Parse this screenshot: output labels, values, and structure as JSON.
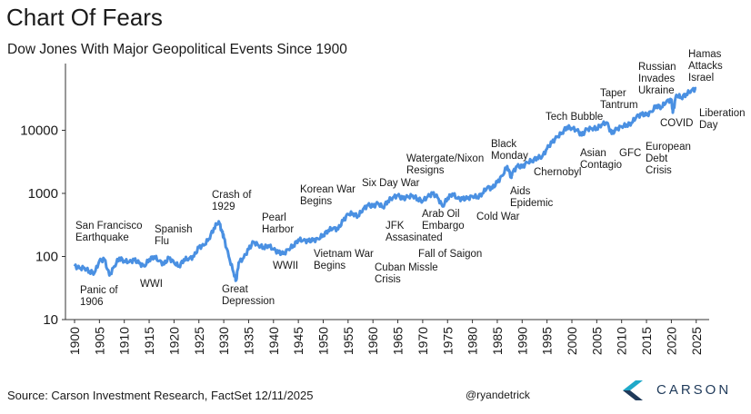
{
  "chart_data": {
    "type": "line",
    "title": "Chart Of Fears",
    "subtitle": "Dow Jones With Major Geopolitical Events Since 1900",
    "y_scale": "log",
    "ylim": [
      10,
      50000
    ],
    "xlim": [
      1900,
      2026
    ],
    "y_ticks": [
      "10",
      "100",
      "1000",
      "10000"
    ],
    "x_ticks": [
      "1900",
      "1905",
      "1910",
      "1915",
      "1920",
      "1925",
      "1930",
      "1935",
      "1940",
      "1945",
      "1950",
      "1955",
      "1960",
      "1965",
      "1970",
      "1975",
      "1980",
      "1985",
      "1990",
      "1995",
      "2000",
      "2005",
      "2010",
      "2015",
      "2020",
      "2025"
    ],
    "line_color": "#4a90e2",
    "series": [
      {
        "x": [
          1900,
          1901,
          1902,
          1903,
          1904,
          1905,
          1906,
          1907,
          1908,
          1909,
          1910,
          1911,
          1912,
          1913,
          1914,
          1915,
          1916,
          1917,
          1918,
          1919,
          1920,
          1921,
          1922,
          1923,
          1924,
          1925,
          1926,
          1927,
          1928,
          1929,
          1929.7,
          1930,
          1931,
          1932,
          1932.5,
          1933,
          1934,
          1935,
          1936,
          1937,
          1938,
          1939,
          1940,
          1941,
          1942,
          1943,
          1944,
          1945,
          1946,
          1947,
          1948,
          1949,
          1950,
          1951,
          1952,
          1953,
          1954,
          1955,
          1956,
          1957,
          1958,
          1959,
          1960,
          1961,
          1962,
          1963,
          1964,
          1965,
          1966,
          1967,
          1968,
          1969,
          1970,
          1971,
          1972,
          1973,
          1974,
          1975,
          1976,
          1977,
          1978,
          1979,
          1980,
          1981,
          1982,
          1983,
          1984,
          1985,
          1986,
          1987,
          1987.8,
          1988,
          1989,
          1990,
          1991,
          1992,
          1993,
          1994,
          1995,
          1996,
          1997,
          1998,
          1999,
          2000,
          2001,
          2002,
          2003,
          2004,
          2005,
          2006,
          2007,
          2008,
          2009,
          2010,
          2011,
          2012,
          2013,
          2014,
          2015,
          2016,
          2017,
          2018,
          2019,
          2020,
          2020.3,
          2021,
          2022,
          2023,
          2024,
          2025
        ],
        "y": [
          70,
          65,
          66,
          58,
          55,
          85,
          90,
          50,
          70,
          95,
          85,
          82,
          88,
          78,
          70,
          90,
          100,
          85,
          75,
          95,
          80,
          70,
          90,
          92,
          100,
          140,
          150,
          190,
          280,
          360,
          240,
          200,
          100,
          55,
          42,
          80,
          95,
          130,
          170,
          150,
          140,
          150,
          130,
          115,
          110,
          130,
          150,
          185,
          180,
          175,
          180,
          190,
          220,
          260,
          280,
          270,
          370,
          470,
          480,
          440,
          560,
          650,
          620,
          700,
          600,
          760,
          860,
          930,
          820,
          880,
          920,
          820,
          760,
          890,
          990,
          860,
          620,
          850,
          990,
          830,
          810,
          830,
          900,
          880,
          1000,
          1250,
          1200,
          1500,
          1900,
          2700,
          1800,
          2100,
          2700,
          2600,
          3100,
          3300,
          3700,
          3800,
          5100,
          6400,
          7800,
          9100,
          11300,
          10800,
          10000,
          8300,
          10400,
          10700,
          10800,
          12400,
          13300,
          8800,
          10400,
          11500,
          12200,
          13100,
          16500,
          17800,
          17400,
          19700,
          24700,
          23300,
          28500,
          30600,
          19000,
          36300,
          33100,
          37600,
          42500,
          46000
        ]
      }
    ],
    "annotations": [
      {
        "lines": [
          "San Francisco",
          "Earthquake"
        ]
      },
      {
        "lines": [
          "Panic of",
          "1906"
        ]
      },
      {
        "lines": [
          "Spanish",
          "Flu"
        ]
      },
      {
        "lines": [
          "WWI"
        ]
      },
      {
        "lines": [
          "Crash of",
          "1929"
        ]
      },
      {
        "lines": [
          "Great",
          "Depression"
        ]
      },
      {
        "lines": [
          "Pearl",
          "Harbor"
        ]
      },
      {
        "lines": [
          "WWII"
        ]
      },
      {
        "lines": [
          "Korean War",
          "Begins"
        ]
      },
      {
        "lines": [
          "Vietnam War",
          "Begins"
        ]
      },
      {
        "lines": [
          "Six Day War"
        ]
      },
      {
        "lines": [
          "Cuban Missle",
          "Crisis"
        ]
      },
      {
        "lines": [
          "JFK",
          "Assasinated"
        ]
      },
      {
        "lines": [
          "Watergate/Nixon",
          "Resigns"
        ]
      },
      {
        "lines": [
          "Arab Oil",
          "Embargo"
        ]
      },
      {
        "lines": [
          "Fall of Saigon"
        ]
      },
      {
        "lines": [
          "Cold War"
        ]
      },
      {
        "lines": [
          "Aids",
          "Epidemic"
        ]
      },
      {
        "lines": [
          "Black",
          "Monday"
        ]
      },
      {
        "lines": [
          "Chernobyl"
        ]
      },
      {
        "lines": [
          "Tech Bubble"
        ]
      },
      {
        "lines": [
          "Asian",
          "Contagio"
        ]
      },
      {
        "lines": [
          "Taper",
          "Tantrum"
        ]
      },
      {
        "lines": [
          "GFC"
        ]
      },
      {
        "lines": [
          "European",
          "Debt",
          "Crisis"
        ]
      },
      {
        "lines": [
          "Russian",
          "Invades",
          "Ukraine"
        ]
      },
      {
        "lines": [
          "COVID"
        ]
      },
      {
        "lines": [
          "Hamas",
          "Attacks",
          "Israel"
        ]
      },
      {
        "lines": [
          "Liberation",
          "Day"
        ]
      }
    ]
  },
  "footer": {
    "source": "Source: Carson Investment Research, FactSet 12/11/2025",
    "handle": "@ryandetrick",
    "logo_text": "CARSON",
    "logo_icon": "carson-chevron-logo-icon"
  }
}
